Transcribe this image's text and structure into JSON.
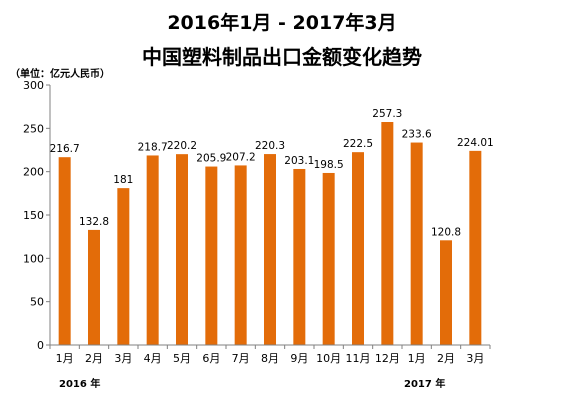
{
  "title": {
    "line1": "2016年1月 - 2017年3月",
    "line2": "中国塑料制品出口金额变化趋势"
  },
  "unit_label": "（单位：亿元人民币）",
  "year_labels": {
    "left": "2016 年",
    "right": "2017 年"
  },
  "colors": {
    "bar": "#e36c09",
    "axis": "#808080",
    "grid": "none"
  },
  "chart_data": {
    "type": "bar",
    "categories": [
      "1月",
      "2月",
      "3月",
      "4月",
      "5月",
      "6月",
      "7月",
      "8月",
      "9月",
      "10月",
      "11月",
      "12月",
      "1月",
      "2月",
      "3月"
    ],
    "values": [
      216.7,
      132.8,
      181,
      218.7,
      220.2,
      205.9,
      207.2,
      220.3,
      203.1,
      198.5,
      222.5,
      257.3,
      233.6,
      120.8,
      224.01
    ],
    "value_labels": [
      "216.7",
      "132.8",
      "181",
      "218.7",
      "220.2",
      "205.9",
      "207.2",
      "220.3",
      "203.1",
      "198.5",
      "222.5",
      "257.3",
      "233.6",
      "120.8",
      "224.01"
    ],
    "y_ticks": [
      0,
      50,
      100,
      150,
      200,
      250,
      300
    ],
    "ylim": [
      0,
      300
    ],
    "grid": false,
    "legend": "none"
  }
}
